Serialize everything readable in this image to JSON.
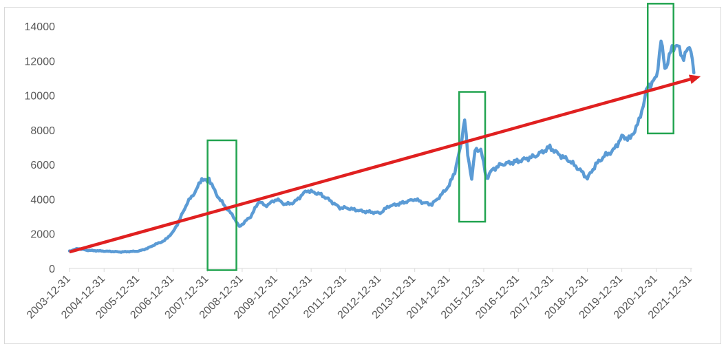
{
  "chart_data": {
    "type": "line",
    "title": "",
    "xlabel": "",
    "ylabel": "",
    "ylim": [
      0,
      14000
    ],
    "y_ticks": [
      0,
      2000,
      4000,
      6000,
      8000,
      10000,
      12000,
      14000
    ],
    "x_tick_labels": [
      "2003-12-31",
      "2004-12-31",
      "2005-12-31",
      "2006-12-31",
      "2007-12-31",
      "2008-12-31",
      "2009-12-31",
      "2010-12-31",
      "2011-12-31",
      "2012-12-31",
      "2013-12-31",
      "2014-12-31",
      "2015-12-31",
      "2016-12-31",
      "2017-12-31",
      "2018-12-31",
      "2019-12-31",
      "2020-12-31",
      "2021-12-31"
    ],
    "grid": false,
    "legend": "none",
    "series": [
      {
        "color": "#5b9bd5",
        "x": [
          "2003-12-31",
          "2004-03-31",
          "2004-06-30",
          "2004-12-31",
          "2005-06-30",
          "2005-12-31",
          "2006-03-31",
          "2006-06-30",
          "2006-09-30",
          "2006-12-31",
          "2007-02-28",
          "2007-05-31",
          "2007-08-31",
          "2007-10-31",
          "2007-12-31",
          "2008-01-15",
          "2008-03-31",
          "2008-06-30",
          "2008-09-30",
          "2008-11-30",
          "2009-03-31",
          "2009-06-30",
          "2009-08-31",
          "2009-12-31",
          "2010-03-31",
          "2010-06-30",
          "2010-11-15",
          "2011-03-31",
          "2011-06-30",
          "2011-10-31",
          "2011-12-31",
          "2012-06-30",
          "2012-12-31",
          "2013-03-31",
          "2013-06-30",
          "2013-12-31",
          "2014-03-31",
          "2014-06-30",
          "2014-09-30",
          "2014-12-31",
          "2015-02-28",
          "2015-04-30",
          "2015-06-12",
          "2015-07-15",
          "2015-08-26",
          "2015-09-30",
          "2015-11-30",
          "2016-01-28",
          "2016-03-31",
          "2016-06-30",
          "2016-12-31",
          "2017-06-30",
          "2017-11-30",
          "2018-02-28",
          "2018-06-30",
          "2018-10-31",
          "2018-12-31",
          "2019-03-31",
          "2019-06-30",
          "2019-09-30",
          "2019-12-31",
          "2020-03-31",
          "2020-06-30",
          "2020-09-30",
          "2020-12-31",
          "2021-02-18",
          "2021-03-31",
          "2021-05-31",
          "2021-07-31",
          "2021-09-30",
          "2021-12-31",
          "2022-01-31"
        ],
        "values": [
          1000,
          1150,
          1050,
          1000,
          950,
          1000,
          1150,
          1400,
          1600,
          2100,
          2700,
          3800,
          4500,
          5200,
          5000,
          5200,
          4300,
          3600,
          3000,
          2400,
          3000,
          3900,
          3600,
          4000,
          3700,
          3800,
          4500,
          4300,
          4000,
          3500,
          3500,
          3300,
          3200,
          3600,
          3700,
          4000,
          3800,
          3700,
          4200,
          4800,
          5600,
          7000,
          8700,
          6500,
          5200,
          6800,
          6900,
          5200,
          5700,
          6000,
          6200,
          6500,
          7000,
          6600,
          6200,
          5600,
          5200,
          6000,
          6500,
          6800,
          7600,
          7500,
          8500,
          10500,
          11000,
          13200,
          11500,
          12500,
          13000,
          12200,
          12800,
          11300
        ]
      }
    ],
    "overlays": {
      "trend_arrow": {
        "color": "#e02020",
        "from": {
          "x": "2003-12-31",
          "y": 950
        },
        "to": {
          "x": "2022-01-31",
          "y": 11100
        }
      },
      "highlight_boxes": [
        {
          "color": "#22a450",
          "x_start": "2007-12-31",
          "x_end": "2008-10-31",
          "y_low": -100,
          "y_high": 7400
        },
        {
          "color": "#22a450",
          "x_start": "2015-04-15",
          "x_end": "2016-01-15",
          "y_low": 2700,
          "y_high": 10200
        },
        {
          "color": "#22a450",
          "x_start": "2020-09-30",
          "x_end": "2021-06-30",
          "y_low": 7800,
          "y_high": 15300
        }
      ]
    }
  }
}
